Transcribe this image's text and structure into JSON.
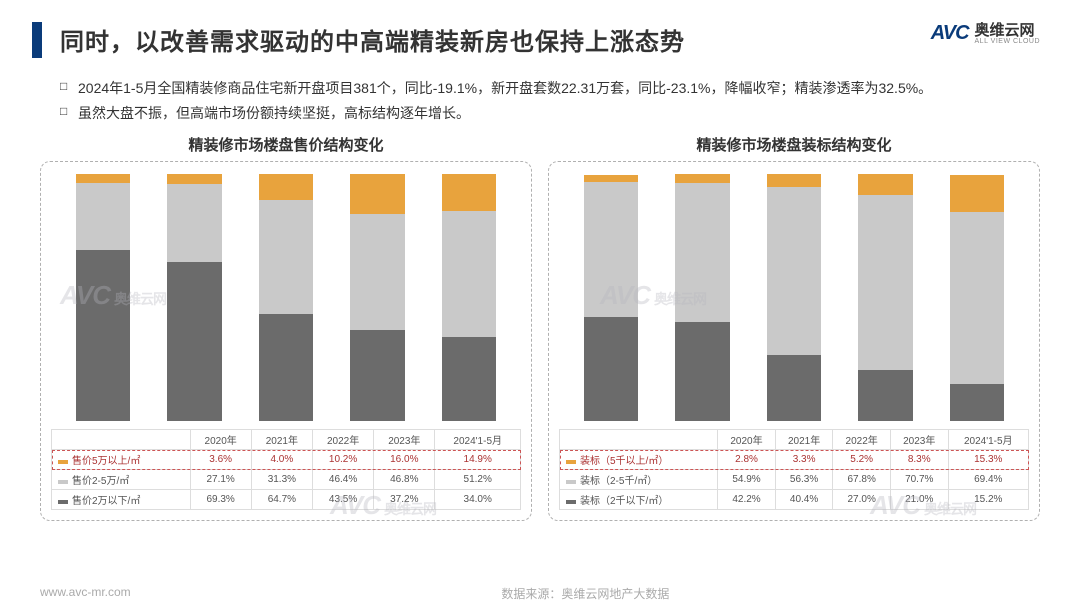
{
  "header": {
    "title": "同时，以改善需求驱动的中高端精装新房也保持上涨态势",
    "logo_mark": "AVC",
    "logo_cn": "奥维云网",
    "logo_en": "ALL VIEW CLOUD"
  },
  "bullets": [
    "2024年1-5月全国精装修商品住宅新开盘项目381个，同比-19.1%，新开盘套数22.31万套，同比-23.1%，降幅收窄；精装渗透率为32.5%。",
    "虽然大盘不振，但高端市场份额持续坚挺，高标结构逐年增长。"
  ],
  "colors": {
    "series_top": "#e8a33d",
    "series_mid": "#c9c9c9",
    "series_bot": "#6b6b6b",
    "border": "#b0b0b0",
    "accent": "#0a3b7a"
  },
  "chart_left": {
    "title": "精装修市场楼盘售价结构变化",
    "categories": [
      "2020年",
      "2021年",
      "2022年",
      "2023年",
      "2024'1-5月"
    ],
    "series": [
      {
        "name": "售价5万以上/㎡",
        "color_key": "series_top",
        "values": [
          3.6,
          4.0,
          10.2,
          16.0,
          14.9
        ],
        "highlight": true
      },
      {
        "name": "售价2-5万/㎡",
        "color_key": "series_mid",
        "values": [
          27.1,
          31.3,
          46.4,
          46.8,
          51.2
        ]
      },
      {
        "name": "售价2万以下/㎡",
        "color_key": "series_bot",
        "values": [
          69.3,
          64.7,
          43.5,
          37.2,
          34.0
        ]
      }
    ]
  },
  "chart_right": {
    "title": "精装修市场楼盘装标结构变化",
    "categories": [
      "2020年",
      "2021年",
      "2022年",
      "2023年",
      "2024'1-5月"
    ],
    "series": [
      {
        "name": "装标（5千以上/㎡）",
        "color_key": "series_top",
        "values": [
          2.8,
          3.3,
          5.2,
          8.3,
          15.3
        ],
        "highlight": true
      },
      {
        "name": "装标（2-5千/㎡）",
        "color_key": "series_mid",
        "values": [
          54.9,
          56.3,
          67.8,
          70.7,
          69.4
        ]
      },
      {
        "name": "装标（2千以下/㎡）",
        "color_key": "series_bot",
        "values": [
          42.2,
          40.4,
          27.0,
          21.0,
          15.2
        ]
      }
    ]
  },
  "footer": {
    "url": "www.avc-mr.com",
    "source": "数据来源：奥维云网地产大数据"
  },
  "watermark": {
    "mark": "AVC",
    "sub": "奥维云网"
  }
}
